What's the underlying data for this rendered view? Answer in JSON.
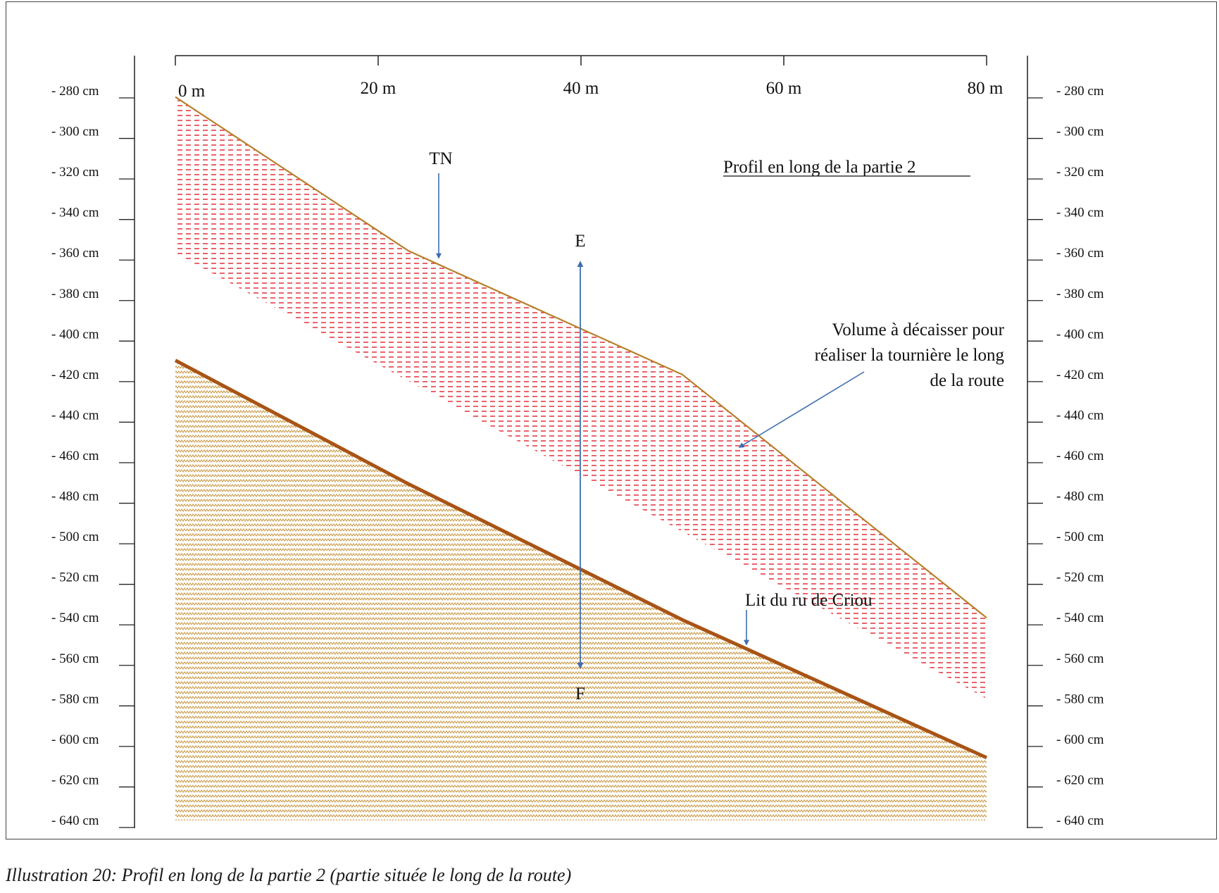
{
  "title": "Profil en long de la partie 2",
  "caption": "Illustration 20: Profil en long de  la partie 2 (partie située le long de la route)",
  "x_axis": {
    "ticks": [
      0,
      20,
      40,
      60,
      80
    ],
    "labels": [
      "0 m",
      "20 m",
      "40 m",
      "60 m",
      "80 m"
    ]
  },
  "y_axis": {
    "ticks": [
      -280,
      -300,
      -320,
      -340,
      -360,
      -380,
      -400,
      -420,
      -440,
      -460,
      -480,
      -500,
      -520,
      -540,
      -560,
      -580,
      -600,
      -620,
      -640
    ],
    "labels": [
      "- 280 cm",
      "- 300 cm",
      "- 320 cm",
      "- 340 cm",
      "- 360 cm",
      "- 380 cm",
      "- 400 cm",
      "- 420 cm",
      "- 440 cm",
      "- 460 cm",
      "- 480 cm",
      "- 500 cm",
      "- 520 cm",
      "- 540 cm",
      "- 560 cm",
      "- 580 cm",
      "- 600 cm",
      "- 620 cm",
      "- 640 cm"
    ]
  },
  "profiles": {
    "terrain_naturel": [
      [
        0,
        -283
      ],
      [
        23,
        -359
      ],
      [
        50,
        -420
      ],
      [
        80,
        -540
      ]
    ],
    "excavation_bottom": [
      [
        0,
        -360
      ],
      [
        80,
        -580
      ]
    ],
    "ruisseau": [
      [
        0,
        -413
      ],
      [
        23,
        -474
      ],
      [
        50,
        -541
      ],
      [
        80,
        -609
      ]
    ]
  },
  "labels": {
    "tn": "TN",
    "e": "E",
    "f": "F",
    "volume_lines": [
      "Volume à décaisser pour",
      "réaliser la tournière le long",
      "de la route"
    ],
    "ruisseau": "Lit du ru de Criou"
  },
  "colors": {
    "terrain_line": "#b87f2a",
    "excavation_hatch": "#e0202a",
    "ruisseau_line": "#a85416",
    "ruisseau_hatch": "#c99a45",
    "arrow": "#3d6db0"
  }
}
